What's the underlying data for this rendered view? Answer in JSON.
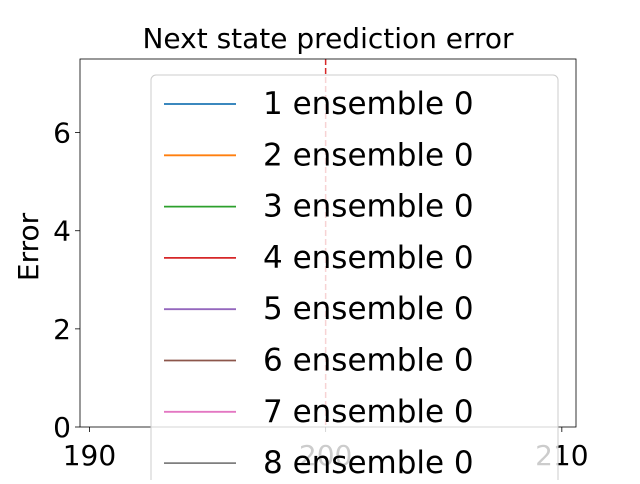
{
  "chart_data": {
    "type": "line",
    "title": "Next state prediction error",
    "xlabel": "",
    "ylabel": "Error",
    "xlim": [
      189.6,
      210.6
    ],
    "ylim": [
      0,
      7.5
    ],
    "xticks": [
      190,
      200,
      210
    ],
    "yticks": [
      0,
      2,
      4,
      6
    ],
    "grid": false,
    "legend_placement": "center",
    "vline": {
      "x": 200,
      "color": "#d62728",
      "style": "dashed"
    },
    "series": [
      {
        "name": "1 ensemble 0",
        "color": "#1f77b4",
        "values": []
      },
      {
        "name": "2 ensemble 0",
        "color": "#ff7f0e",
        "values": []
      },
      {
        "name": "3 ensemble 0",
        "color": "#2ca02c",
        "values": []
      },
      {
        "name": "4 ensemble 0",
        "color": "#d62728",
        "values": []
      },
      {
        "name": "5 ensemble 0",
        "color": "#9467bd",
        "values": []
      },
      {
        "name": "6 ensemble 0",
        "color": "#8c564b",
        "values": []
      },
      {
        "name": "7 ensemble 0",
        "color": "#e377c2",
        "values": []
      },
      {
        "name": "8 ensemble 0",
        "color": "#7f7f7f",
        "values": []
      }
    ]
  }
}
